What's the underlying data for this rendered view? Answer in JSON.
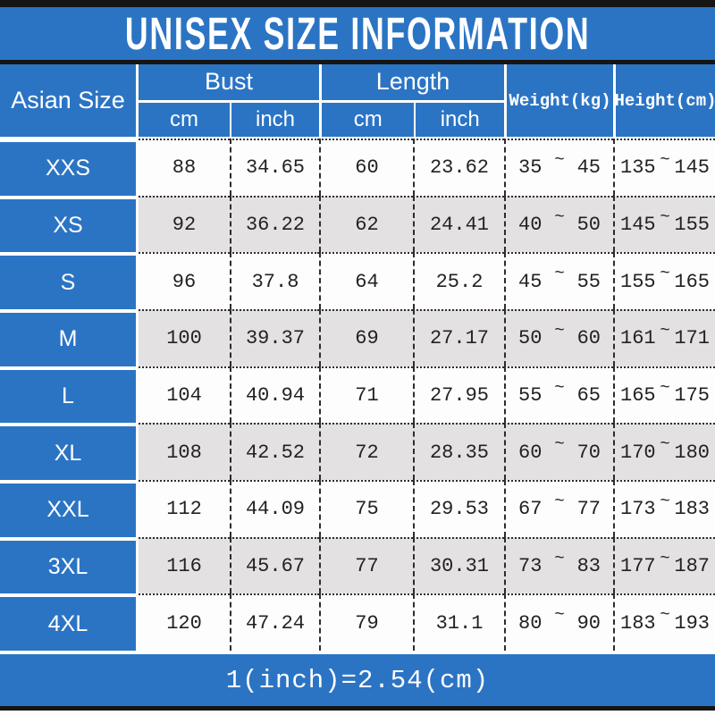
{
  "title": "UNISEX SIZE INFORMATION",
  "header": {
    "size_col": "Asian Size",
    "bust": "Bust",
    "length": "Length",
    "weight": "Weight(kg)",
    "height": "Height(cm)",
    "cm_label": "cm",
    "inch_label": "inch"
  },
  "tilde": "~",
  "footer_note": "1(inch)=2.54(cm)",
  "colors": {
    "blue": "#2b74c4",
    "row_white": "#fdfdfd",
    "row_gray": "#e3e1e2",
    "black_bar": "#151515",
    "text_dark": "#222222",
    "text_white": "#ffffff"
  },
  "chart_data": {
    "type": "table",
    "title": "UNISEX SIZE INFORMATION",
    "columns": [
      "Asian Size",
      "Bust cm",
      "Bust inch",
      "Length cm",
      "Length inch",
      "Weight(kg)",
      "Height(cm)"
    ],
    "note": "1(inch)=2.54(cm)",
    "rows": [
      {
        "size": "XXS",
        "bust_cm": "88",
        "bust_inch": "34.65",
        "length_cm": "60",
        "length_inch": "23.62",
        "weight_min": "35",
        "weight_max": "45",
        "height_min": "135",
        "height_max": "145"
      },
      {
        "size": "XS",
        "bust_cm": "92",
        "bust_inch": "36.22",
        "length_cm": "62",
        "length_inch": "24.41",
        "weight_min": "40",
        "weight_max": "50",
        "height_min": "145",
        "height_max": "155"
      },
      {
        "size": "S",
        "bust_cm": "96",
        "bust_inch": "37.8",
        "length_cm": "64",
        "length_inch": "25.2",
        "weight_min": "45",
        "weight_max": "55",
        "height_min": "155",
        "height_max": "165"
      },
      {
        "size": "M",
        "bust_cm": "100",
        "bust_inch": "39.37",
        "length_cm": "69",
        "length_inch": "27.17",
        "weight_min": "50",
        "weight_max": "60",
        "height_min": "161",
        "height_max": "171"
      },
      {
        "size": "L",
        "bust_cm": "104",
        "bust_inch": "40.94",
        "length_cm": "71",
        "length_inch": "27.95",
        "weight_min": "55",
        "weight_max": "65",
        "height_min": "165",
        "height_max": "175"
      },
      {
        "size": "XL",
        "bust_cm": "108",
        "bust_inch": "42.52",
        "length_cm": "72",
        "length_inch": "28.35",
        "weight_min": "60",
        "weight_max": "70",
        "height_min": "170",
        "height_max": "180"
      },
      {
        "size": "XXL",
        "bust_cm": "112",
        "bust_inch": "44.09",
        "length_cm": "75",
        "length_inch": "29.53",
        "weight_min": "67",
        "weight_max": "77",
        "height_min": "173",
        "height_max": "183"
      },
      {
        "size": "3XL",
        "bust_cm": "116",
        "bust_inch": "45.67",
        "length_cm": "77",
        "length_inch": "30.31",
        "weight_min": "73",
        "weight_max": "83",
        "height_min": "177",
        "height_max": "187"
      },
      {
        "size": "4XL",
        "bust_cm": "120",
        "bust_inch": "47.24",
        "length_cm": "79",
        "length_inch": "31.1",
        "weight_min": "80",
        "weight_max": "90",
        "height_min": "183",
        "height_max": "193"
      }
    ]
  }
}
